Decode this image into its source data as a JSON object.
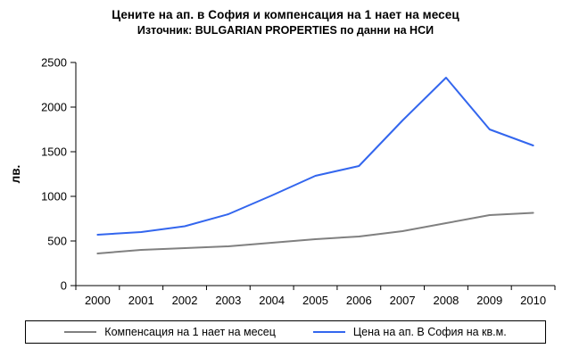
{
  "chart_data": {
    "type": "line",
    "title": "Цените на ап. в София и компенсация на 1 нает на месец",
    "subtitle": "Източник: BULGARIAN PROPERTIES по данни на НСИ",
    "ylabel": "лв.",
    "xlabel": "",
    "ylim": [
      0,
      2500
    ],
    "ytick_step": 500,
    "grid": false,
    "legend_position": "bottom",
    "axis_color": "#000000",
    "categories": [
      "2000",
      "2001",
      "2002",
      "2003",
      "2004",
      "2005",
      "2006",
      "2007",
      "2008",
      "2009",
      "2010"
    ],
    "series": [
      {
        "name": "Компенсация на 1 нает на месец",
        "color": "#808080",
        "values": [
          360,
          400,
          420,
          440,
          480,
          520,
          550,
          610,
          700,
          790,
          815
        ]
      },
      {
        "name": "Цена на ап. В София на кв.м.",
        "color": "#3366EE",
        "values": [
          570,
          600,
          665,
          800,
          1010,
          1230,
          1340,
          1850,
          2330,
          1750,
          1570
        ]
      }
    ]
  }
}
